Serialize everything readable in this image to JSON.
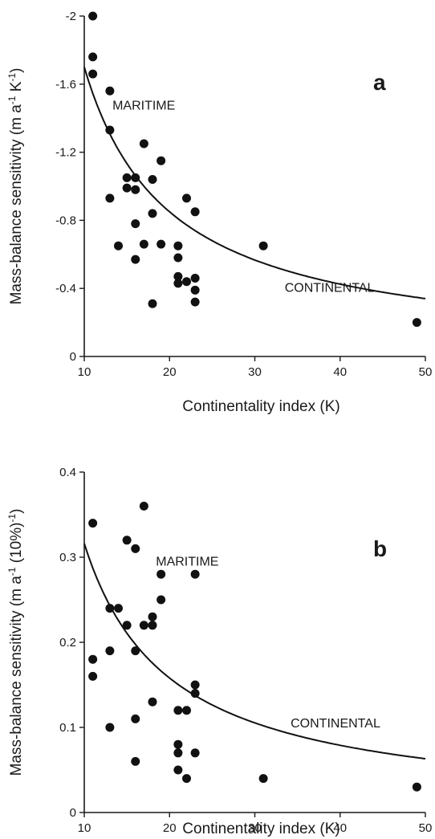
{
  "chart_data": [
    {
      "type": "scatter",
      "panel_label": "a",
      "xlabel": "Continentality index (K)",
      "ylabel_parts": {
        "main": "Mass-balance sensitivity (m a",
        "sup1": "-1",
        "mid": " K",
        "sup2": "-1",
        "end": ")"
      },
      "xlim": [
        10,
        50
      ],
      "ylim": [
        0,
        -2
      ],
      "y_reversed": true,
      "x_ticks": [
        10,
        20,
        30,
        40,
        50
      ],
      "y_ticks": [
        0,
        -0.4,
        -0.8,
        -1.2,
        -1.6,
        -2
      ],
      "y_tick_labels": [
        "0",
        "-0.4",
        "-0.8",
        "-1.2",
        "-1.6",
        "-2"
      ],
      "annotations": [
        {
          "text": "MARITIME",
          "x": 13.3,
          "y": -1.45
        },
        {
          "text": "CONTINENTAL",
          "x": 33.5,
          "y": -0.38
        }
      ],
      "points": [
        [
          11,
          -2.0
        ],
        [
          11,
          -1.76
        ],
        [
          11,
          -1.66
        ],
        [
          13,
          -1.56
        ],
        [
          13,
          -1.33
        ],
        [
          13,
          -0.93
        ],
        [
          14,
          -0.65
        ],
        [
          15,
          -1.05
        ],
        [
          15,
          -0.99
        ],
        [
          16,
          -1.05
        ],
        [
          16,
          -0.98
        ],
        [
          16,
          -0.78
        ],
        [
          16,
          -0.57
        ],
        [
          17,
          -1.25
        ],
        [
          17,
          -0.66
        ],
        [
          18,
          -1.04
        ],
        [
          18,
          -0.84
        ],
        [
          18,
          -0.31
        ],
        [
          19,
          -1.15
        ],
        [
          19,
          -0.66
        ],
        [
          21,
          -0.65
        ],
        [
          21,
          -0.58
        ],
        [
          21,
          -0.47
        ],
        [
          21,
          -0.43
        ],
        [
          22,
          -0.93
        ],
        [
          22,
          -0.44
        ],
        [
          23,
          -0.85
        ],
        [
          23,
          -0.46
        ],
        [
          23,
          -0.39
        ],
        [
          23,
          -0.32
        ],
        [
          31,
          -0.65
        ],
        [
          49,
          -0.2
        ]
      ],
      "fit_curve": {
        "a": -17.0,
        "b": -1.0
      }
    },
    {
      "type": "scatter",
      "panel_label": "b",
      "xlabel": "Continentality index (K)",
      "ylabel_parts": {
        "main": "Mass-balance sensitivity (m a",
        "sup1": "-1",
        "mid": " (10%)",
        "sup2": "-1",
        "end": ")"
      },
      "xlim": [
        10,
        50
      ],
      "ylim": [
        0,
        0.4
      ],
      "y_reversed": false,
      "x_ticks": [
        10,
        20,
        30,
        40,
        50
      ],
      "y_ticks": [
        0,
        0.1,
        0.2,
        0.3,
        0.4
      ],
      "y_tick_labels": [
        "0",
        "0.1",
        "0.2",
        "0.3",
        "0.4"
      ],
      "annotations": [
        {
          "text": "MARITIME",
          "x": 18.4,
          "y": 0.29
        },
        {
          "text": "CONTINENTAL",
          "x": 34.2,
          "y": 0.1
        }
      ],
      "points": [
        [
          11,
          0.34
        ],
        [
          11,
          0.18
        ],
        [
          11,
          0.16
        ],
        [
          13,
          0.24
        ],
        [
          13,
          0.19
        ],
        [
          13,
          0.1
        ],
        [
          14,
          0.24
        ],
        [
          15,
          0.32
        ],
        [
          15,
          0.22
        ],
        [
          16,
          0.31
        ],
        [
          16,
          0.19
        ],
        [
          16,
          0.11
        ],
        [
          16,
          0.06
        ],
        [
          17,
          0.36
        ],
        [
          17,
          0.22
        ],
        [
          18,
          0.23
        ],
        [
          18,
          0.22
        ],
        [
          18,
          0.13
        ],
        [
          19,
          0.28
        ],
        [
          19,
          0.25
        ],
        [
          21,
          0.12
        ],
        [
          21,
          0.08
        ],
        [
          21,
          0.07
        ],
        [
          21,
          0.05
        ],
        [
          22,
          0.12
        ],
        [
          22,
          0.04
        ],
        [
          23,
          0.28
        ],
        [
          23,
          0.15
        ],
        [
          23,
          0.14
        ],
        [
          23,
          0.07
        ],
        [
          31,
          0.04
        ],
        [
          49,
          0.03
        ]
      ],
      "fit_curve": {
        "a": 3.16,
        "b": -1.0
      }
    }
  ]
}
